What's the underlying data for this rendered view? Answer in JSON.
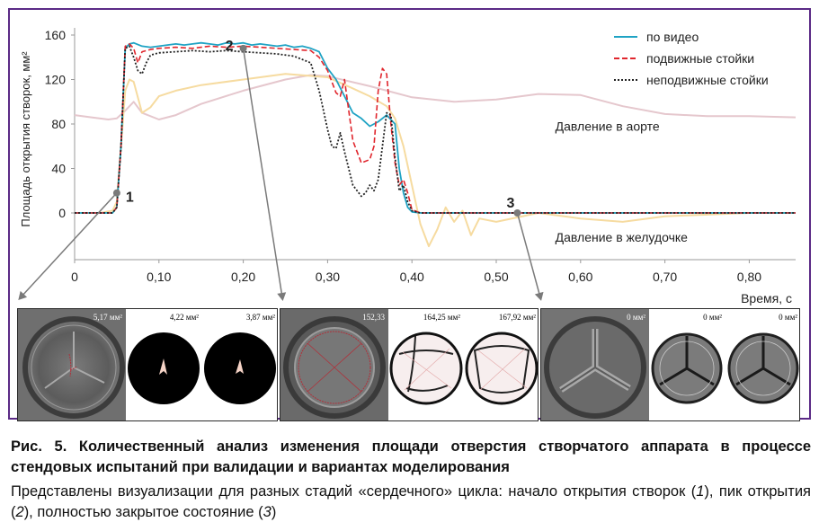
{
  "chart_data": {
    "type": "line",
    "xlabel": "Время, с",
    "ylabel": "Площадь открытия створок, мм²",
    "xlim": [
      0,
      0.855
    ],
    "ylim": [
      0,
      160
    ],
    "x_ticks": [
      0,
      0.1,
      0.2,
      0.3,
      0.4,
      0.5,
      0.6,
      0.7,
      0.8
    ],
    "x_tick_labels": [
      "0",
      "0,10",
      "0,20",
      "0,30",
      "0,40",
      "0,50",
      "0,60",
      "0,70",
      "0,80"
    ],
    "y_ticks": [
      0,
      40,
      80,
      120,
      160
    ],
    "y_tick_labels": [
      "0",
      "40",
      "80",
      "120",
      "160"
    ],
    "legend_position": "top-right",
    "series": [
      {
        "name": "по видео",
        "color": "#1fa3c4",
        "style": "solid",
        "x": [
          0,
          0.045,
          0.05,
          0.055,
          0.06,
          0.065,
          0.07,
          0.08,
          0.09,
          0.1,
          0.11,
          0.12,
          0.13,
          0.14,
          0.15,
          0.16,
          0.17,
          0.18,
          0.19,
          0.2,
          0.21,
          0.22,
          0.23,
          0.24,
          0.25,
          0.26,
          0.27,
          0.28,
          0.29,
          0.3,
          0.31,
          0.32,
          0.33,
          0.34,
          0.35,
          0.36,
          0.37,
          0.38,
          0.385,
          0.39,
          0.395,
          0.4,
          0.41,
          0.855
        ],
        "y": [
          0,
          0,
          5,
          60,
          148,
          152,
          153,
          150,
          149,
          150,
          151,
          152,
          151,
          152,
          153,
          152,
          151,
          153,
          152,
          153,
          151,
          152,
          151,
          150,
          151,
          149,
          150,
          148,
          145,
          130,
          120,
          105,
          90,
          85,
          78,
          82,
          88,
          80,
          40,
          18,
          5,
          1,
          0,
          0
        ]
      },
      {
        "name": "подвижные стойки",
        "color": "#e0262d",
        "style": "dashed",
        "x": [
          0,
          0.045,
          0.05,
          0.055,
          0.06,
          0.065,
          0.07,
          0.075,
          0.08,
          0.09,
          0.1,
          0.12,
          0.14,
          0.16,
          0.18,
          0.2,
          0.22,
          0.24,
          0.26,
          0.28,
          0.29,
          0.3,
          0.31,
          0.315,
          0.32,
          0.33,
          0.34,
          0.35,
          0.355,
          0.36,
          0.365,
          0.37,
          0.375,
          0.38,
          0.385,
          0.39,
          0.395,
          0.4,
          0.41,
          0.855
        ],
        "y": [
          0,
          0,
          5,
          60,
          150,
          152,
          148,
          135,
          145,
          147,
          148,
          149,
          148,
          150,
          149,
          150,
          149,
          148,
          147,
          146,
          140,
          128,
          108,
          105,
          120,
          65,
          45,
          48,
          60,
          110,
          130,
          125,
          80,
          45,
          25,
          30,
          18,
          3,
          0,
          0
        ]
      },
      {
        "name": "неподвижные стойки",
        "color": "#222222",
        "style": "dotted",
        "x": [
          0,
          0.045,
          0.05,
          0.055,
          0.06,
          0.065,
          0.07,
          0.075,
          0.08,
          0.085,
          0.09,
          0.1,
          0.12,
          0.14,
          0.16,
          0.18,
          0.2,
          0.22,
          0.24,
          0.26,
          0.28,
          0.29,
          0.3,
          0.305,
          0.31,
          0.315,
          0.32,
          0.33,
          0.34,
          0.345,
          0.35,
          0.355,
          0.36,
          0.365,
          0.37,
          0.375,
          0.38,
          0.385,
          0.39,
          0.395,
          0.4,
          0.41,
          0.855
        ],
        "y": [
          0,
          0,
          5,
          60,
          148,
          150,
          140,
          128,
          125,
          135,
          142,
          144,
          145,
          146,
          145,
          146,
          145,
          144,
          143,
          141,
          135,
          110,
          75,
          60,
          58,
          72,
          55,
          25,
          15,
          18,
          25,
          20,
          30,
          60,
          90,
          88,
          50,
          20,
          25,
          10,
          2,
          0,
          0
        ]
      },
      {
        "name": "Давление в аорте",
        "color": "#e5c7cd",
        "style": "solid",
        "x": [
          0,
          0.02,
          0.04,
          0.05,
          0.06,
          0.07,
          0.08,
          0.1,
          0.12,
          0.15,
          0.2,
          0.25,
          0.28,
          0.3,
          0.35,
          0.4,
          0.45,
          0.5,
          0.55,
          0.6,
          0.65,
          0.7,
          0.75,
          0.8,
          0.855
        ],
        "y": [
          88,
          86,
          84,
          85,
          92,
          100,
          90,
          84,
          88,
          98,
          110,
          120,
          124,
          123,
          114,
          104,
          100,
          102,
          107,
          106,
          96,
          89,
          87,
          87,
          86
        ]
      },
      {
        "name": "Давление в желудочке",
        "color": "#f6dba0",
        "style": "solid",
        "x": [
          0,
          0.03,
          0.045,
          0.05,
          0.055,
          0.06,
          0.065,
          0.07,
          0.08,
          0.09,
          0.1,
          0.12,
          0.15,
          0.2,
          0.25,
          0.3,
          0.33,
          0.35,
          0.37,
          0.38,
          0.39,
          0.4,
          0.41,
          0.42,
          0.43,
          0.44,
          0.45,
          0.46,
          0.47,
          0.48,
          0.5,
          0.55,
          0.6,
          0.65,
          0.7,
          0.8,
          0.855
        ],
        "y": [
          0,
          0,
          2,
          10,
          60,
          110,
          120,
          118,
          90,
          95,
          105,
          110,
          115,
          120,
          125,
          122,
          112,
          105,
          96,
          85,
          60,
          25,
          -10,
          -30,
          -15,
          5,
          -8,
          2,
          -20,
          -5,
          -8,
          0,
          -5,
          -8,
          -3,
          0,
          0
        ]
      }
    ],
    "annotations": [
      {
        "label": "1",
        "x": 0.05,
        "y": 18
      },
      {
        "label": "2",
        "x": 0.2,
        "y": 148
      },
      {
        "label": "3",
        "x": 0.525,
        "y": 0
      }
    ],
    "curve_labels": [
      {
        "text": "Давление в аорте",
        "x": 0.57,
        "y": 78
      },
      {
        "text": "Давление в желудочке",
        "x": 0.57,
        "y": -22
      }
    ]
  },
  "panels": [
    {
      "id": "stage-1",
      "labels": [
        "5,17 мм²",
        "4,22 мм²",
        "3,87 мм²"
      ]
    },
    {
      "id": "stage-2",
      "labels": [
        "152,33",
        "164,25 мм²",
        "167,92 мм²"
      ]
    },
    {
      "id": "stage-3",
      "labels": [
        "0 мм²",
        "0 мм²",
        "0 мм²"
      ]
    }
  ],
  "caption": {
    "title": "Рис. 5. Количественный анализ изменения площади отверстия створчатого аппарата в процессе стендовых испытаний при валидации и вариантах моделирования",
    "body_prefix": "Представлены визуализации для разных стадий «сердечного» цикла: начало открытия створок (",
    "n1": "1",
    "mid1": "), пик открытия (",
    "n2": "2",
    "mid2": "), полностью закрытое состояние (",
    "n3": "3",
    "suffix": ")"
  },
  "colors": {
    "frame": "#5b2a86",
    "video": "#1fa3c4",
    "mobile_struts": "#e0262d",
    "fixed_struts": "#222222",
    "aortic_pressure": "#e5c7cd",
    "ventricular_pressure": "#f6dba0",
    "marker": "#7a7a7a"
  }
}
